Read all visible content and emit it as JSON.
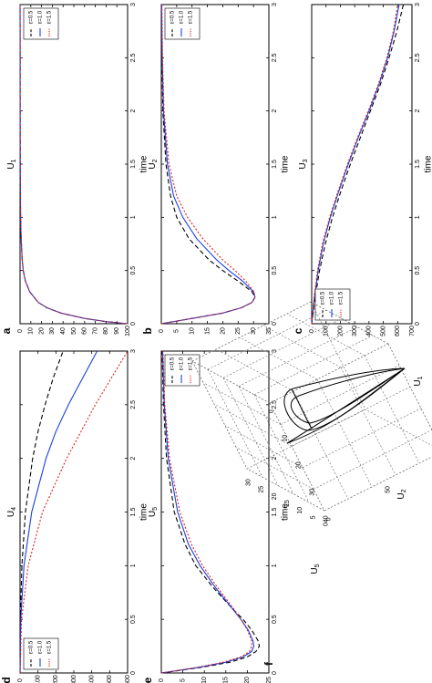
{
  "chart_data": [
    {
      "panel": "a",
      "type": "line",
      "xlabel": "time",
      "ylabel": "U",
      "ylabel_sub": "1",
      "xlim": [
        0,
        3
      ],
      "ylim": [
        0,
        100
      ],
      "xticks": [
        "0",
        "0.5",
        "1",
        "1.5",
        "2",
        "2.5",
        "3"
      ],
      "yticks": [
        "0",
        "10",
        "20",
        "30",
        "40",
        "50",
        "60",
        "70",
        "80",
        "90",
        "100"
      ],
      "legend": {
        "position": "top-right"
      },
      "series": [
        {
          "name": "ε=0.5",
          "color": "#000000",
          "dash": "5,3",
          "x": [
            0,
            0.02,
            0.05,
            0.1,
            0.15,
            0.2,
            0.3,
            0.4,
            0.5,
            0.6,
            0.8,
            1,
            1.5,
            2,
            2.5,
            3
          ],
          "y": [
            100,
            80,
            60,
            38,
            25,
            17,
            9,
            5,
            3,
            2,
            1,
            0.5,
            0.2,
            0.1,
            0.05,
            0
          ]
        },
        {
          "name": "ε=1.0",
          "color": "#1a3fe0",
          "dash": "",
          "x": [
            0,
            0.02,
            0.05,
            0.1,
            0.15,
            0.2,
            0.3,
            0.4,
            0.5,
            0.6,
            0.8,
            1,
            1.5,
            2,
            2.5,
            3
          ],
          "y": [
            100,
            80,
            60,
            38,
            25,
            17,
            9,
            5,
            3,
            2,
            1,
            0.5,
            0.2,
            0.1,
            0.05,
            0
          ]
        },
        {
          "name": "ε=1.5",
          "color": "#e0201a",
          "dash": "2,2",
          "x": [
            0,
            0.02,
            0.05,
            0.1,
            0.15,
            0.2,
            0.3,
            0.4,
            0.5,
            0.6,
            0.8,
            1,
            1.5,
            2,
            2.5,
            3
          ],
          "y": [
            100,
            80,
            60,
            38,
            25,
            17,
            9,
            5,
            3,
            2,
            1,
            0.5,
            0.2,
            0.1,
            0.05,
            0
          ]
        }
      ]
    },
    {
      "panel": "b",
      "type": "line",
      "xlabel": "time",
      "ylabel": "U",
      "ylabel_sub": "2",
      "xlim": [
        0,
        3
      ],
      "ylim": [
        0,
        35
      ],
      "xticks": [
        "0",
        "0.5",
        "1",
        "1.5",
        "2",
        "2.5",
        "3"
      ],
      "yticks": [
        "0",
        "5",
        "10",
        "15",
        "20",
        "25",
        "30",
        "35"
      ],
      "legend": {
        "position": "top-right"
      },
      "series": [
        {
          "name": "ε=0.5",
          "color": "#000000",
          "dash": "5,3",
          "x": [
            0,
            0.05,
            0.1,
            0.15,
            0.2,
            0.25,
            0.3,
            0.4,
            0.5,
            0.6,
            0.8,
            1,
            1.2,
            1.5,
            2,
            2.5,
            3
          ],
          "y": [
            0,
            10,
            20,
            26,
            29.5,
            30.5,
            29.5,
            25,
            20,
            15.5,
            9,
            5,
            3,
            1.5,
            0.5,
            0.2,
            0
          ]
        },
        {
          "name": "ε=1.0",
          "color": "#1a3fe0",
          "dash": "",
          "x": [
            0,
            0.05,
            0.1,
            0.15,
            0.2,
            0.25,
            0.3,
            0.4,
            0.5,
            0.6,
            0.8,
            1,
            1.2,
            1.5,
            2,
            2.5,
            3
          ],
          "y": [
            0,
            10,
            20,
            26,
            29.5,
            30.5,
            30,
            26.5,
            22,
            18,
            11.5,
            7,
            4,
            2,
            0.7,
            0.3,
            0.1
          ]
        },
        {
          "name": "ε=1.5",
          "color": "#e0201a",
          "dash": "2,2",
          "x": [
            0,
            0.05,
            0.1,
            0.15,
            0.2,
            0.25,
            0.3,
            0.4,
            0.5,
            0.6,
            0.8,
            1,
            1.2,
            1.5,
            2,
            2.5,
            3
          ],
          "y": [
            0,
            10,
            20,
            26,
            29.5,
            30.5,
            30.2,
            27.5,
            24,
            20,
            13.5,
            8.5,
            5,
            2.5,
            0.9,
            0.4,
            0.2
          ]
        }
      ]
    },
    {
      "panel": "c",
      "type": "line",
      "xlabel": "time",
      "ylabel": "U",
      "ylabel_sub": "3",
      "xlim": [
        0,
        3
      ],
      "ylim": [
        0,
        700
      ],
      "xticks": [
        "0",
        "0.5",
        "1",
        "1.5",
        "2",
        "2.5",
        "3"
      ],
      "yticks": [
        "0",
        "100",
        "200",
        "300",
        "400",
        "500",
        "600",
        "700"
      ],
      "legend": {
        "position": "top-left"
      },
      "series": [
        {
          "name": "ε=0.5",
          "color": "#000000",
          "dash": "5,3",
          "x": [
            0,
            0.25,
            0.5,
            0.75,
            1,
            1.25,
            1.5,
            1.75,
            2,
            2.25,
            2.5,
            2.75,
            3
          ],
          "y": [
            0,
            25,
            55,
            95,
            145,
            205,
            270,
            340,
            410,
            480,
            540,
            595,
            640
          ]
        },
        {
          "name": "ε=1.0",
          "color": "#1a3fe0",
          "dash": "",
          "x": [
            0,
            0.25,
            0.5,
            0.75,
            1,
            1.25,
            1.5,
            1.75,
            2,
            2.25,
            2.5,
            2.75,
            3
          ],
          "y": [
            0,
            20,
            45,
            80,
            130,
            190,
            255,
            325,
            400,
            470,
            530,
            575,
            610
          ]
        },
        {
          "name": "ε=1.5",
          "color": "#e0201a",
          "dash": "2,2",
          "x": [
            0,
            0.25,
            0.5,
            0.75,
            1,
            1.25,
            1.5,
            1.75,
            2,
            2.25,
            2.5,
            2.75,
            3
          ],
          "y": [
            0,
            18,
            40,
            75,
            125,
            185,
            250,
            320,
            395,
            465,
            525,
            570,
            600
          ]
        }
      ]
    },
    {
      "panel": "d",
      "type": "line",
      "xlabel": "time",
      "ylabel": "U",
      "ylabel_sub": "4",
      "xlim": [
        0,
        3
      ],
      "ylim": [
        0,
        600
      ],
      "xticks": [
        "0",
        "0.5",
        "1",
        "1.5",
        "2",
        "2.5",
        "3"
      ],
      "yticks": [
        "0",
        "100",
        "200",
        "300",
        "400",
        "500",
        "600"
      ],
      "legend": {
        "position": "top-left"
      },
      "series": [
        {
          "name": "ε=0.5",
          "color": "#000000",
          "dash": "5,3",
          "x": [
            0,
            0.5,
            1,
            1.5,
            2,
            2.25,
            2.5,
            2.75,
            3
          ],
          "y": [
            0,
            2,
            10,
            30,
            70,
            100,
            140,
            185,
            240
          ]
        },
        {
          "name": "ε=1.0",
          "color": "#1a3fe0",
          "dash": "",
          "x": [
            0,
            0.5,
            1,
            1.5,
            2,
            2.25,
            2.5,
            2.75,
            3
          ],
          "y": [
            0,
            4,
            22,
            65,
            145,
            200,
            270,
            350,
            430
          ]
        },
        {
          "name": "ε=1.5",
          "color": "#e0201a",
          "dash": "2,2",
          "x": [
            0,
            0.5,
            1,
            1.5,
            2,
            2.25,
            2.5,
            2.75,
            3
          ],
          "y": [
            0,
            8,
            45,
            125,
            260,
            340,
            420,
            510,
            600
          ]
        }
      ]
    },
    {
      "panel": "e",
      "type": "line",
      "xlabel": "time",
      "ylabel": "U",
      "ylabel_sub": "5",
      "xlim": [
        0,
        3
      ],
      "ylim": [
        0,
        25
      ],
      "xticks": [
        "0",
        "0.5",
        "1",
        "1.5",
        "2",
        "2.5",
        "3"
      ],
      "yticks": [
        "0",
        "5",
        "10",
        "15",
        "20",
        "25"
      ],
      "legend": {
        "position": "top-right"
      },
      "series": [
        {
          "name": "ε=0.5",
          "color": "#000000",
          "dash": "5,3",
          "x": [
            0,
            0.05,
            0.1,
            0.15,
            0.2,
            0.25,
            0.3,
            0.4,
            0.5,
            0.6,
            0.8,
            1,
            1.2,
            1.5,
            2,
            2.5,
            3
          ],
          "y": [
            0,
            9,
            16,
            20,
            22,
            22.8,
            22.5,
            21,
            19,
            16.5,
            12,
            8,
            5.5,
            3,
            1.2,
            0.5,
            0.2
          ]
        },
        {
          "name": "ε=1.0",
          "color": "#1a3fe0",
          "dash": "",
          "x": [
            0,
            0.05,
            0.1,
            0.15,
            0.2,
            0.25,
            0.3,
            0.4,
            0.5,
            0.6,
            0.8,
            1,
            1.2,
            1.5,
            2,
            2.5,
            3
          ],
          "y": [
            0,
            8.5,
            15,
            19,
            21,
            21.5,
            21.3,
            20.2,
            18.5,
            16.5,
            12.5,
            9,
            6.3,
            3.8,
            1.6,
            0.7,
            0.3
          ]
        },
        {
          "name": "ε=1.5",
          "color": "#e0201a",
          "dash": "2,2",
          "x": [
            0,
            0.05,
            0.1,
            0.15,
            0.2,
            0.25,
            0.3,
            0.4,
            0.5,
            0.6,
            0.8,
            1,
            1.2,
            1.5,
            2,
            2.5,
            3
          ],
          "y": [
            0,
            8,
            14.5,
            18.5,
            20.5,
            21,
            21,
            20,
            18.5,
            16.8,
            13,
            9.6,
            7,
            4.3,
            1.9,
            0.8,
            0.4
          ]
        }
      ]
    },
    {
      "panel": "f",
      "type": "line3d",
      "xlabel": "U",
      "xlabel_sub": "1",
      "ylabel": "U",
      "ylabel_sub": "2",
      "zlabel": "U",
      "zlabel_sub": "5",
      "u1ticks": [
        "0",
        "50",
        "100"
      ],
      "u2ticks": [
        "0",
        "10",
        "20",
        "30",
        "40"
      ],
      "u5ticks": [
        "0",
        "5",
        "10",
        "15",
        "20",
        "25",
        "30"
      ]
    }
  ]
}
